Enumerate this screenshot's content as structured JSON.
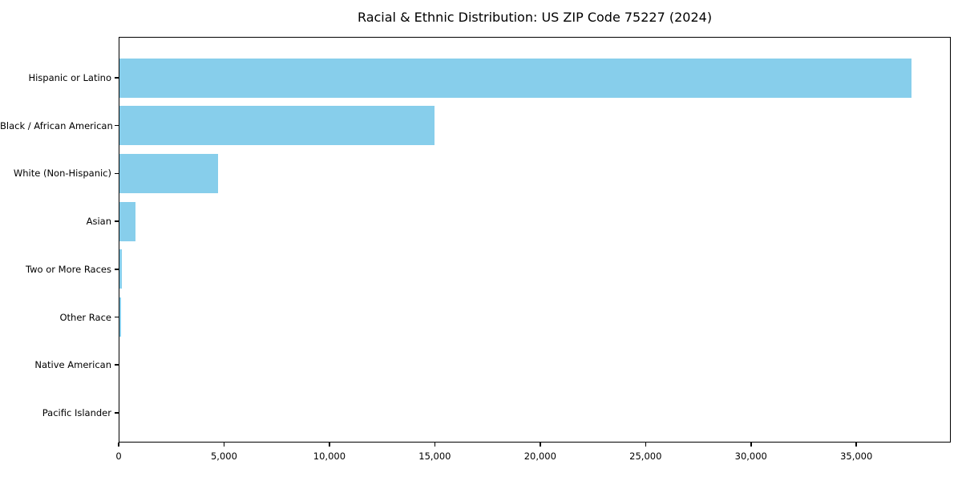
{
  "chart": {
    "title": "Racial & Ethnic Distribution: US ZIP Code 75227 (2024)"
  },
  "chart_data": {
    "type": "bar",
    "orientation": "horizontal",
    "title": "Racial & Ethnic Distribution: US ZIP Code 75227 (2024)",
    "categories": [
      "Hispanic or Latino",
      "Black / African American",
      "White (Non-Hispanic)",
      "Asian",
      "Two or More Races",
      "Other Race",
      "Native American",
      "Pacific Islander"
    ],
    "values": [
      37600,
      15000,
      4700,
      780,
      160,
      120,
      35,
      5
    ],
    "bar_color": "#87CEEB",
    "xlabel": "",
    "ylabel": "",
    "xlim": [
      0,
      39480
    ],
    "x_ticks": [
      0,
      5000,
      10000,
      15000,
      20000,
      25000,
      30000,
      35000
    ],
    "x_tick_labels": [
      "0",
      "5,000",
      "10,000",
      "15,000",
      "20,000",
      "25,000",
      "30,000",
      "35,000"
    ],
    "grid": false,
    "legend": null,
    "spine_color": "#000000",
    "text_color": "#000000",
    "background_color": "#ffffff"
  }
}
